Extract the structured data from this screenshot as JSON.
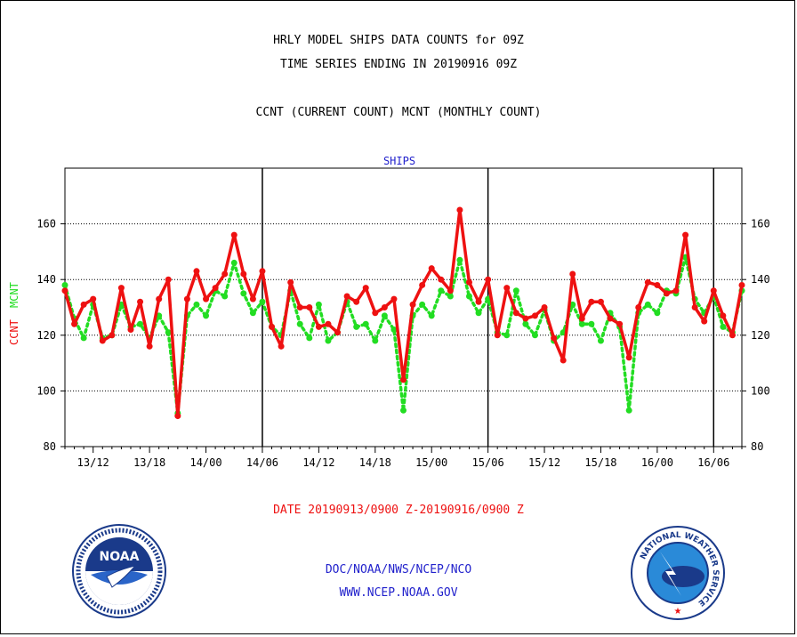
{
  "header": {
    "line1": "HRLY MODEL SHIPS DATA COUNTS for 09Z",
    "line2": "TIME SERIES ENDING IN 20190916 09Z",
    "line3": "CCNT (CURRENT COUNT) MCNT (MONTHLY COUNT)"
  },
  "footer": {
    "date_range": "DATE 20190913/0900 Z-20190916/0900 Z",
    "org": "DOC/NOAA/NWS/NCEP/NCO",
    "url": "WWW.NCEP.NOAA.GOV"
  },
  "logos": {
    "noaa_text": "NOAA",
    "nws_ring": "NATIONAL WEATHER SERVICE"
  },
  "colors": {
    "ccnt": "#ee1111",
    "mcnt": "#22dd22",
    "plot_title": "#2222cc",
    "footer_blue": "#2222cc",
    "footer_red": "#ee1111"
  },
  "chart_data": {
    "type": "line",
    "title": "SHIPS",
    "ylabel_left": [
      "CCNT",
      "MCNT"
    ],
    "ylim": [
      80,
      180
    ],
    "yticks": [
      80,
      100,
      120,
      140,
      160
    ],
    "grid": true,
    "x_start_hour": 9,
    "x_end_hour": 81,
    "tick_labels": [
      "13/12",
      "13/18",
      "14/00",
      "14/06",
      "14/12",
      "14/18",
      "15/00",
      "15/06",
      "15/12",
      "15/18",
      "16/00",
      "16/06"
    ],
    "day_dividers": [
      "14/06",
      "15/06",
      "16/06"
    ],
    "series": [
      {
        "name": "CCNT",
        "style": "solid",
        "values": [
          136,
          124,
          131,
          133,
          118,
          120,
          137,
          122,
          132,
          116,
          133,
          140,
          91,
          133,
          143,
          133,
          137,
          142,
          156,
          142,
          133,
          143,
          123,
          116,
          139,
          130,
          130,
          123,
          124,
          121,
          134,
          132,
          137,
          128,
          130,
          133,
          104,
          131,
          138,
          144,
          140,
          136,
          165,
          139,
          132,
          140,
          120,
          137,
          128,
          126,
          127,
          130,
          119,
          111,
          142,
          126,
          132,
          132,
          126,
          124,
          112,
          130,
          139,
          138,
          135,
          136,
          156,
          130,
          125,
          136,
          127,
          120,
          138
        ]
      },
      {
        "name": "MCNT",
        "style": "dotted",
        "values": [
          138,
          126,
          119,
          131,
          119,
          120,
          131,
          123,
          124,
          119,
          127,
          121,
          92,
          127,
          131,
          127,
          136,
          134,
          146,
          135,
          128,
          132,
          123,
          120,
          136,
          124,
          119,
          131,
          118,
          121,
          132,
          123,
          124,
          118,
          127,
          122,
          93,
          127,
          131,
          127,
          136,
          134,
          147,
          134,
          128,
          133,
          121,
          120,
          136,
          124,
          120,
          129,
          118,
          121,
          131,
          124,
          124,
          118,
          128,
          123,
          93,
          128,
          131,
          128,
          136,
          135,
          148,
          133,
          128,
          134,
          123,
          121,
          136
        ]
      }
    ]
  }
}
